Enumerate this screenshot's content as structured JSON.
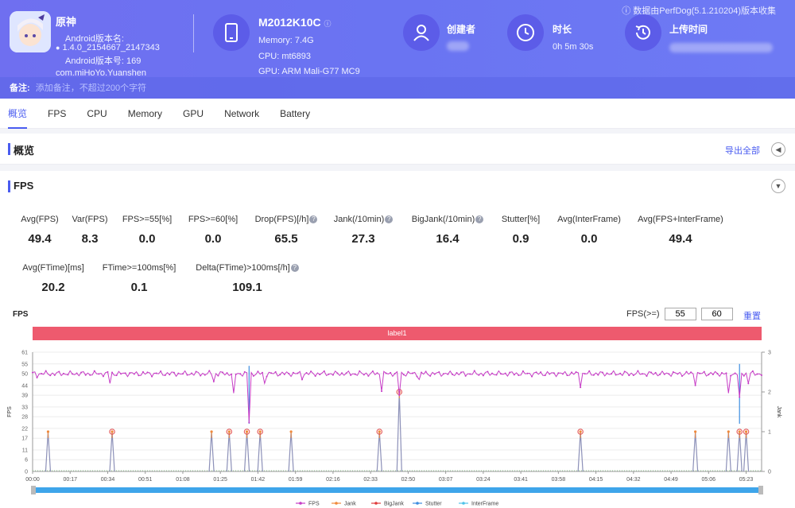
{
  "header": {
    "data_source": "数据由PerfDog(5.1.210204)版本收集",
    "app": {
      "name": "原神",
      "android_version_name_label": "Android版本名:",
      "android_version_name_value": "1.4.0_2154667_2147343",
      "android_version_code": "Android版本号: 169",
      "package": "com.miHoYo.Yuanshen"
    },
    "device": {
      "model": "M2012K10C",
      "memory": "Memory: 7.4G",
      "cpu": "CPU: mt6893",
      "gpu": "GPU: ARM Mali-G77 MC9"
    },
    "creator_label": "创建者",
    "duration_label": "时长",
    "duration_value": "0h 5m 30s",
    "upload_time_label": "上传时间",
    "note_label": "备注:",
    "note_placeholder": "添加备注，不超过200个字符",
    "colors": {
      "header_bg": "#6a74f2",
      "icon_circle": "#5c5ce8"
    }
  },
  "tabs": [
    "概览",
    "FPS",
    "CPU",
    "Memory",
    "GPU",
    "Network",
    "Battery"
  ],
  "overview": {
    "title": "概览",
    "export_label": "导出全部"
  },
  "fps_section": {
    "title": "FPS",
    "metrics_row1": [
      {
        "label": "Avg(FPS)",
        "value": "49.4",
        "help": false
      },
      {
        "label": "Var(FPS)",
        "value": "8.3",
        "help": false
      },
      {
        "label": "FPS>=55[%]",
        "value": "0.0",
        "help": false
      },
      {
        "label": "FPS>=60[%]",
        "value": "0.0",
        "help": false
      },
      {
        "label": "Drop(FPS)[/h]",
        "value": "65.5",
        "help": true
      },
      {
        "label": "Jank(/10min)",
        "value": "27.3",
        "help": true
      },
      {
        "label": "BigJank(/10min)",
        "value": "16.4",
        "help": true
      },
      {
        "label": "Stutter[%]",
        "value": "0.9",
        "help": false
      },
      {
        "label": "Avg(InterFrame)",
        "value": "0.0",
        "help": false
      },
      {
        "label": "Avg(FPS+InterFrame)",
        "value": "49.4",
        "help": false
      }
    ],
    "metrics_row2": [
      {
        "label": "Avg(FTime)[ms]",
        "value": "20.2",
        "help": false
      },
      {
        "label": "FTime>=100ms[%]",
        "value": "0.1",
        "help": false
      },
      {
        "label": "Delta(FTime)>100ms[/h]",
        "value": "109.1",
        "help": true
      }
    ],
    "chart_title": "FPS",
    "threshold_label": "FPS(>=)",
    "threshold_low": "55",
    "threshold_high": "60",
    "reset_label": "重置",
    "label_bar": "label1"
  },
  "chart_data": {
    "type": "line",
    "ylabel": "FPS",
    "ylabel_right": "Jank",
    "yticks": [
      0,
      6,
      11,
      17,
      22,
      28,
      33,
      39,
      44,
      50,
      55,
      61
    ],
    "ylim": [
      0,
      61
    ],
    "yticks_right": [
      0,
      1,
      2,
      3
    ],
    "ylim_right": [
      0,
      3
    ],
    "xlim_seconds": [
      0,
      330
    ],
    "xticks": [
      "00:00",
      "00:17",
      "00:34",
      "00:51",
      "01:08",
      "01:25",
      "01:42",
      "01:59",
      "02:16",
      "02:33",
      "02:50",
      "03:07",
      "03:24",
      "03:41",
      "03:58",
      "04:15",
      "04:32",
      "04:49",
      "05:06",
      "05:23"
    ],
    "fps_baseline": 50,
    "fps_dips": [
      {
        "t": 2,
        "fps": 48
      },
      {
        "t": 35,
        "fps": 45
      },
      {
        "t": 82,
        "fps": 46
      },
      {
        "t": 91,
        "fps": 40
      },
      {
        "t": 98,
        "fps": 25
      },
      {
        "t": 105,
        "fps": 45
      },
      {
        "t": 122,
        "fps": 47
      },
      {
        "t": 158,
        "fps": 41
      },
      {
        "t": 166,
        "fps": 39
      },
      {
        "t": 175,
        "fps": 47
      },
      {
        "t": 248,
        "fps": 43
      },
      {
        "t": 300,
        "fps": 44
      },
      {
        "t": 315,
        "fps": 40
      },
      {
        "t": 320,
        "fps": 38
      },
      {
        "t": 324,
        "fps": 45
      }
    ],
    "stutter_spikes": [
      {
        "t": 98,
        "fps": 54
      },
      {
        "t": 320,
        "fps": 55
      }
    ],
    "jank_events": [
      {
        "t": 7,
        "jank": 1,
        "big": false
      },
      {
        "t": 36,
        "jank": 1,
        "big": true
      },
      {
        "t": 81,
        "jank": 1,
        "big": false
      },
      {
        "t": 89,
        "jank": 1,
        "big": true
      },
      {
        "t": 97,
        "jank": 1,
        "big": true
      },
      {
        "t": 103,
        "jank": 1,
        "big": true
      },
      {
        "t": 117,
        "jank": 1,
        "big": false
      },
      {
        "t": 157,
        "jank": 1,
        "big": true
      },
      {
        "t": 166,
        "jank": 2,
        "big": true
      },
      {
        "t": 248,
        "jank": 1,
        "big": true
      },
      {
        "t": 300,
        "jank": 1,
        "big": false
      },
      {
        "t": 315,
        "jank": 1,
        "big": false
      },
      {
        "t": 320,
        "jank": 1,
        "big": true
      },
      {
        "t": 323,
        "jank": 1,
        "big": true
      }
    ],
    "series": [
      {
        "name": "FPS",
        "color": "#c63cc6"
      },
      {
        "name": "Jank",
        "color": "#f08a3c"
      },
      {
        "name": "BigJank",
        "color": "#e03c3c"
      },
      {
        "name": "Stutter",
        "color": "#3c8de0"
      },
      {
        "name": "InterFrame",
        "color": "#4fc3e8"
      }
    ]
  }
}
